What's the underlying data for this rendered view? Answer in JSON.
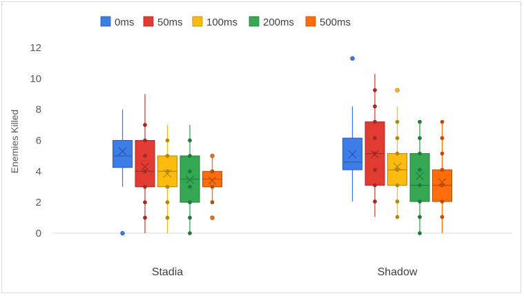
{
  "chart_data": {
    "type": "box",
    "ylabel": "Enemies Killed",
    "ylim": [
      0,
      12
    ],
    "yticks": [
      "0",
      "2",
      "4",
      "6",
      "8",
      "10",
      "12"
    ],
    "categories": [
      "Stadia",
      "Shadow"
    ],
    "legend_position": "top",
    "grid": false,
    "series": [
      {
        "name": "0ms",
        "color": "#3c7de8",
        "groups": [
          {
            "min": 3,
            "q1": 4.25,
            "median": 5,
            "q3": 6,
            "max": 8,
            "mean": 5.3,
            "points": [],
            "outliers": [
              0
            ]
          },
          {
            "min": 2.05,
            "q1": 4.1,
            "median": 4.6,
            "q3": 6.15,
            "max": 8.2,
            "mean": 5.1,
            "points": [],
            "outliers": [
              11.3
            ]
          }
        ]
      },
      {
        "name": "50ms",
        "color": "#e23c32",
        "groups": [
          {
            "min": 0,
            "q1": 3,
            "median": 4,
            "q3": 6,
            "max": 9,
            "mean": 4.3,
            "points": [
              1,
              2,
              3,
              4,
              5,
              6,
              7
            ],
            "outliers": []
          },
          {
            "min": 1.05,
            "q1": 3.1,
            "median": 5.15,
            "q3": 7.2,
            "max": 10.3,
            "mean": 5.1,
            "points": [
              2.05,
              3.1,
              4.1,
              5.15,
              6.15,
              7.2,
              8.2,
              9.25
            ],
            "outliers": []
          }
        ]
      },
      {
        "name": "100ms",
        "color": "#fbbc0f",
        "groups": [
          {
            "min": 0,
            "q1": 3,
            "median": 4,
            "q3": 5,
            "max": 7,
            "mean": 3.85,
            "points": [
              1,
              2,
              3,
              4,
              5,
              6
            ],
            "outliers": []
          },
          {
            "min": 1.05,
            "q1": 3.1,
            "median": 4.1,
            "q3": 5.15,
            "max": 8.2,
            "mean": 4.3,
            "points": [
              1.05,
              2.05,
              3.1,
              4.1,
              5.15,
              6.15,
              7.2
            ],
            "outliers": [
              9.25
            ]
          }
        ]
      },
      {
        "name": "200ms",
        "color": "#35a853",
        "groups": [
          {
            "min": 0,
            "q1": 2,
            "median": 3.5,
            "q3": 5,
            "max": 7,
            "mean": 3.45,
            "points": [
              0,
              1,
              2,
              3,
              4,
              5,
              6
            ],
            "outliers": []
          },
          {
            "min": 0,
            "q1": 2.05,
            "median": 3.1,
            "q3": 5.15,
            "max": 7.2,
            "mean": 3.7,
            "points": [
              0,
              1.05,
              2.05,
              3.1,
              4.1,
              5.15,
              6.15,
              7.2
            ],
            "outliers": []
          }
        ]
      },
      {
        "name": "500ms",
        "color": "#fe6c0c",
        "groups": [
          {
            "min": 2,
            "q1": 3,
            "median": 3.5,
            "q3": 4,
            "max": 5,
            "mean": 3.4,
            "points": [
              2,
              3,
              4
            ],
            "outliers": [
              1,
              5
            ]
          },
          {
            "min": 0,
            "q1": 2.05,
            "median": 3.1,
            "q3": 4.1,
            "max": 7.2,
            "mean": 3.3,
            "points": [
              1.05,
              2.05,
              3.1,
              4.1,
              5.15,
              6.15,
              7.2
            ],
            "outliers": []
          }
        ]
      }
    ]
  }
}
